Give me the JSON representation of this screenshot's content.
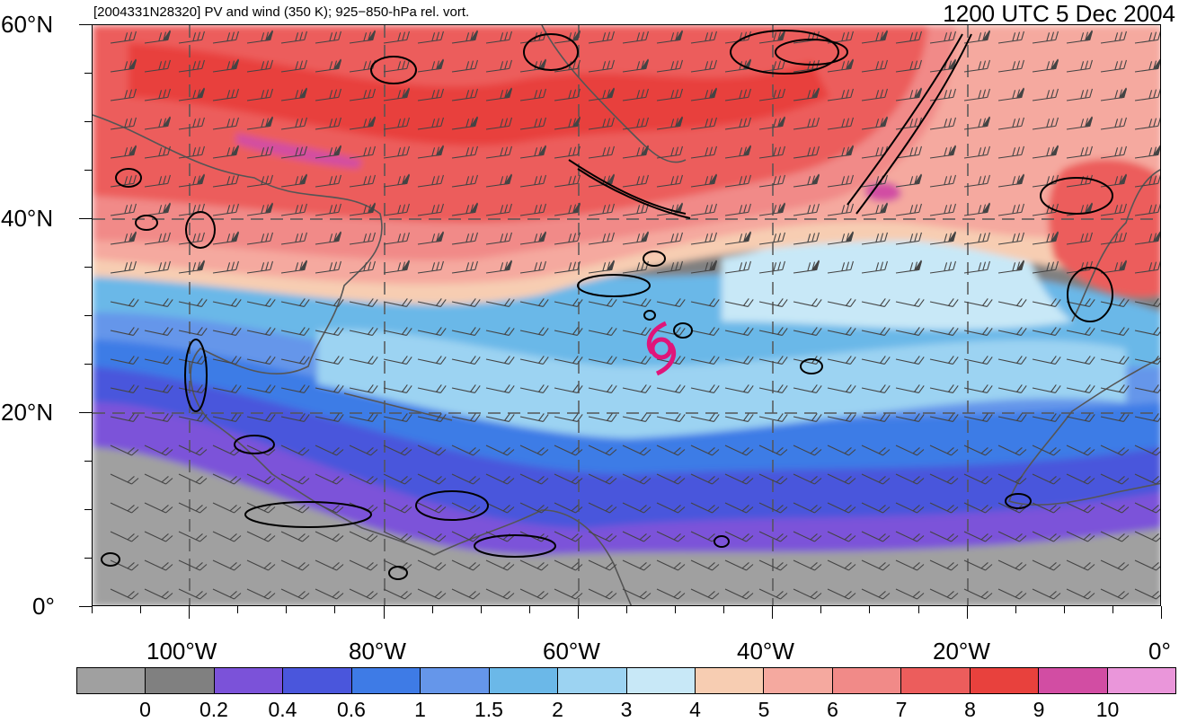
{
  "header": {
    "label": "[2004331N28320] PV and wind (350 K); 925−850-hPa rel. vort.",
    "timestamp": "1200 UTC 5 Dec 2004"
  },
  "axes": {
    "lat_labels": [
      "60°N",
      "40°N",
      "20°N",
      "0°"
    ],
    "lon_labels": [
      "100°W",
      "80°W",
      "60°W",
      "40°W",
      "20°W",
      "0°"
    ],
    "lat_values": [
      60,
      40,
      20,
      0
    ],
    "lon_values": [
      -100,
      -80,
      -60,
      -40,
      -20,
      0
    ],
    "lon_range": [
      -110,
      0
    ],
    "lat_range": [
      0,
      60
    ]
  },
  "colorbar": {
    "ticks": [
      "0",
      "0.2",
      "0.4",
      "0.6",
      "1",
      "1.5",
      "2",
      "3",
      "4",
      "5",
      "6",
      "7",
      "8",
      "9",
      "10"
    ],
    "colors": [
      "#a0a0a0",
      "#808080",
      "#7b52d9",
      "#4a56dc",
      "#3e7be6",
      "#6596ea",
      "#6bb8e8",
      "#9cd3f2",
      "#c8e8f7",
      "#f7cdb2",
      "#f5a99f",
      "#f18a88",
      "#ec5d5c",
      "#e8413d",
      "#d24da3",
      "#ea96da"
    ]
  },
  "palette": {
    "land_outline": "#555555",
    "grid": "#555555",
    "contour": "#000000",
    "storm_symbol": "#e0157a"
  },
  "storm": {
    "id": "2004331N28320",
    "lon": -51.5,
    "lat": 26.5
  }
}
